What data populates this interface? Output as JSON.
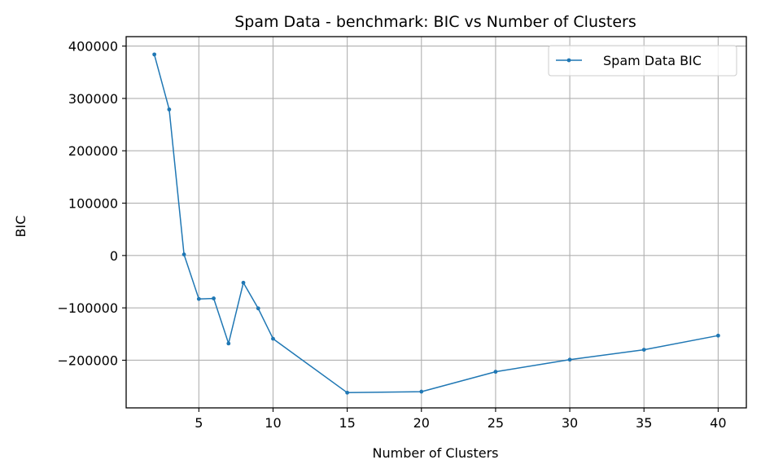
{
  "chart_data": {
    "type": "line",
    "title": "Spam Data - benchmark: BIC vs Number of Clusters",
    "xlabel": "Number of Clusters",
    "ylabel": "BIC",
    "xlim": [
      0.1,
      41.9
    ],
    "ylim": [
      -291000,
      418000
    ],
    "xticks": [
      5,
      10,
      15,
      20,
      25,
      30,
      35,
      40
    ],
    "yticks": [
      -200000,
      -100000,
      0,
      100000,
      200000,
      300000,
      400000
    ],
    "ytick_labels": [
      "−200000",
      "−100000",
      "0",
      "100000",
      "200000",
      "300000",
      "400000"
    ],
    "grid": true,
    "legend_position": "top-right",
    "series": [
      {
        "name": "Spam Data BIC",
        "color": "#1f77b4",
        "marker": "circle",
        "x": [
          2,
          3,
          4,
          5,
          6,
          7,
          8,
          9,
          10,
          15,
          20,
          25,
          30,
          35,
          40
        ],
        "y": [
          384000,
          279000,
          2000,
          -83000,
          -82000,
          -168000,
          -52000,
          -101000,
          -159000,
          -262000,
          -260000,
          -222000,
          -199000,
          -180000,
          -153000
        ]
      }
    ]
  }
}
